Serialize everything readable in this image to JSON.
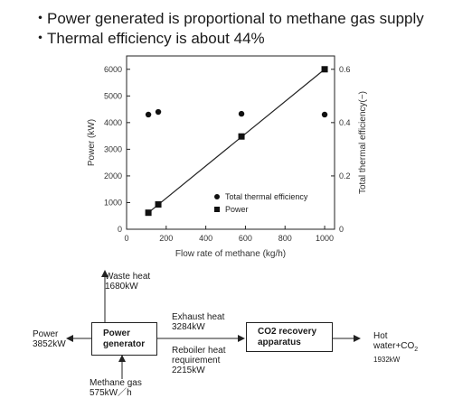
{
  "bullets": [
    "Power generated is proportional to methane gas supply",
    "Thermal efficiency is about 44%"
  ],
  "bullet_marker": "・",
  "chart_data": {
    "type": "scatter",
    "xlabel": "Flow rate of methane (kg/h)",
    "ylabel": "Power (kW)",
    "y2label": "Total thermal efficiency(−)",
    "xlim": [
      0,
      1050
    ],
    "ylim": [
      0,
      6500
    ],
    "y2lim": [
      0,
      0.65
    ],
    "xticks": [
      0,
      200,
      400,
      600,
      800,
      1000
    ],
    "yticks": [
      0,
      1000,
      2000,
      3000,
      4000,
      5000,
      6000
    ],
    "y2ticks": [
      0,
      0.2,
      0.4,
      0.6
    ],
    "y2ticklabels": [
      "0",
      "0.2",
      "0.4",
      "0.6"
    ],
    "legend_position": "bottom-right",
    "grid": false,
    "series": [
      {
        "name": "Total thermal efficiency",
        "marker": "circle",
        "axis": "right",
        "x": [
          110,
          160,
          580,
          1000
        ],
        "y": [
          0.43,
          0.44,
          0.433,
          0.43
        ]
      },
      {
        "name": "Power",
        "marker": "square",
        "axis": "left",
        "x": [
          110,
          160,
          580,
          1000
        ],
        "y": [
          620,
          930,
          3480,
          6000
        ]
      }
    ],
    "fit_line": {
      "x": [
        110,
        1000
      ],
      "y": [
        620,
        6000
      ]
    }
  },
  "diagram": {
    "waste_heat": {
      "label": "Waste heat",
      "value": "1680kW"
    },
    "power_out": {
      "label": "Power",
      "value": "3852kW"
    },
    "generator": {
      "line1": "Power",
      "line2": "generator"
    },
    "exhaust": {
      "label": "Exhaust heat",
      "value": "3284kW"
    },
    "reboiler": {
      "line1": "Reboiler heat",
      "line2": "requirement",
      "value": "2215kW"
    },
    "co2": {
      "line1": "CO2 recovery",
      "line2": "apparatus"
    },
    "hot_water": {
      "line1": "Hot",
      "line2": "water+CO",
      "sub": "2",
      "value": "1932kW"
    },
    "methane": {
      "label": "Methane gas",
      "value": "575kW／h"
    }
  }
}
